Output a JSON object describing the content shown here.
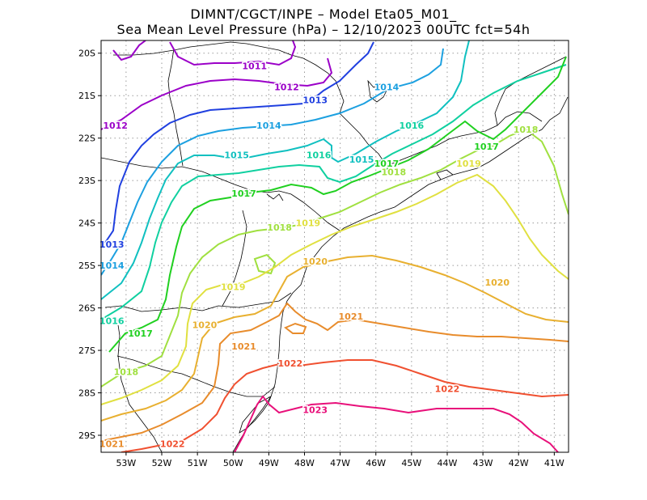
{
  "title_line1": "DIMNT/CGCT/INPE –  Model Eta05_M01_",
  "title_line2": "Sea Mean Level Pressure (hPa) – 12/10/2023 00UTC fct=54h",
  "map": {
    "lon_range": [
      -53.7,
      -40.6
    ],
    "lat_range": [
      -29.4,
      -19.7
    ],
    "x_ticks": [
      "53W",
      "52W",
      "51W",
      "50W",
      "49W",
      "48W",
      "47W",
      "46W",
      "45W",
      "44W",
      "43W",
      "42W",
      "41W"
    ],
    "y_ticks": [
      "20S",
      "21S",
      "22S",
      "23S",
      "24S",
      "25S",
      "26S",
      "27S",
      "28S",
      "29S"
    ],
    "grid": true,
    "grid_style": "dotted"
  },
  "contours": [
    {
      "level": "1011",
      "color": "#9b00c8",
      "labels": [
        {
          "lon": -49.4,
          "lat": -20.3
        }
      ]
    },
    {
      "level": "1012",
      "color": "#9b00c8",
      "labels": [
        {
          "lon": -48.5,
          "lat": -20.8
        },
        {
          "lon": -53.3,
          "lat": -21.7
        }
      ]
    },
    {
      "level": "1013",
      "color": "#2040e0",
      "labels": [
        {
          "lon": -47.7,
          "lat": -21.1
        },
        {
          "lon": -53.4,
          "lat": -24.5
        }
      ]
    },
    {
      "level": "1014",
      "color": "#1ca0e0",
      "labels": [
        {
          "lon": -49.0,
          "lat": -21.7
        },
        {
          "lon": -45.7,
          "lat": -20.8
        },
        {
          "lon": -53.4,
          "lat": -25.0
        }
      ]
    },
    {
      "level": "1015",
      "color": "#10c0c0",
      "labels": [
        {
          "lon": -49.9,
          "lat": -22.4
        },
        {
          "lon": -46.4,
          "lat": -22.5
        }
      ]
    },
    {
      "level": "1016",
      "color": "#10d0a0",
      "labels": [
        {
          "lon": -47.6,
          "lat": -22.4
        },
        {
          "lon": -45.0,
          "lat": -21.7
        },
        {
          "lon": -53.4,
          "lat": -26.3
        }
      ]
    },
    {
      "level": "1017",
      "color": "#20d020",
      "labels": [
        {
          "lon": -49.7,
          "lat": -23.3
        },
        {
          "lon": -45.7,
          "lat": -22.6
        },
        {
          "lon": -42.9,
          "lat": -22.2
        },
        {
          "lon": -52.6,
          "lat": -26.6
        }
      ]
    },
    {
      "level": "1018",
      "color": "#a0e040",
      "labels": [
        {
          "lon": -48.7,
          "lat": -24.1
        },
        {
          "lon": -45.5,
          "lat": -22.8
        },
        {
          "lon": -41.8,
          "lat": -21.8
        },
        {
          "lon": -53.0,
          "lat": -27.5
        }
      ]
    },
    {
      "level": "1019",
      "color": "#e0e040",
      "labels": [
        {
          "lon": -47.9,
          "lat": -24.0
        },
        {
          "lon": -43.4,
          "lat": -22.6
        },
        {
          "lon": -50.0,
          "lat": -25.5
        }
      ]
    },
    {
      "level": "1020",
      "color": "#e8b030",
      "labels": [
        {
          "lon": -47.7,
          "lat": -24.9
        },
        {
          "lon": -42.6,
          "lat": -25.4
        },
        {
          "lon": -50.8,
          "lat": -26.4
        }
      ]
    },
    {
      "level": "1021",
      "color": "#e88c2c",
      "labels": [
        {
          "lon": -46.7,
          "lat": -26.2
        },
        {
          "lon": -49.7,
          "lat": -26.9
        },
        {
          "lon": -53.4,
          "lat": -29.2
        }
      ]
    },
    {
      "level": "1022",
      "color": "#f05030",
      "labels": [
        {
          "lon": -48.4,
          "lat": -27.3
        },
        {
          "lon": -44.0,
          "lat": -27.9
        },
        {
          "lon": -51.7,
          "lat": -29.2
        }
      ]
    },
    {
      "level": "1023",
      "color": "#e8107a",
      "labels": [
        {
          "lon": -47.7,
          "lat": -28.4
        }
      ]
    }
  ]
}
